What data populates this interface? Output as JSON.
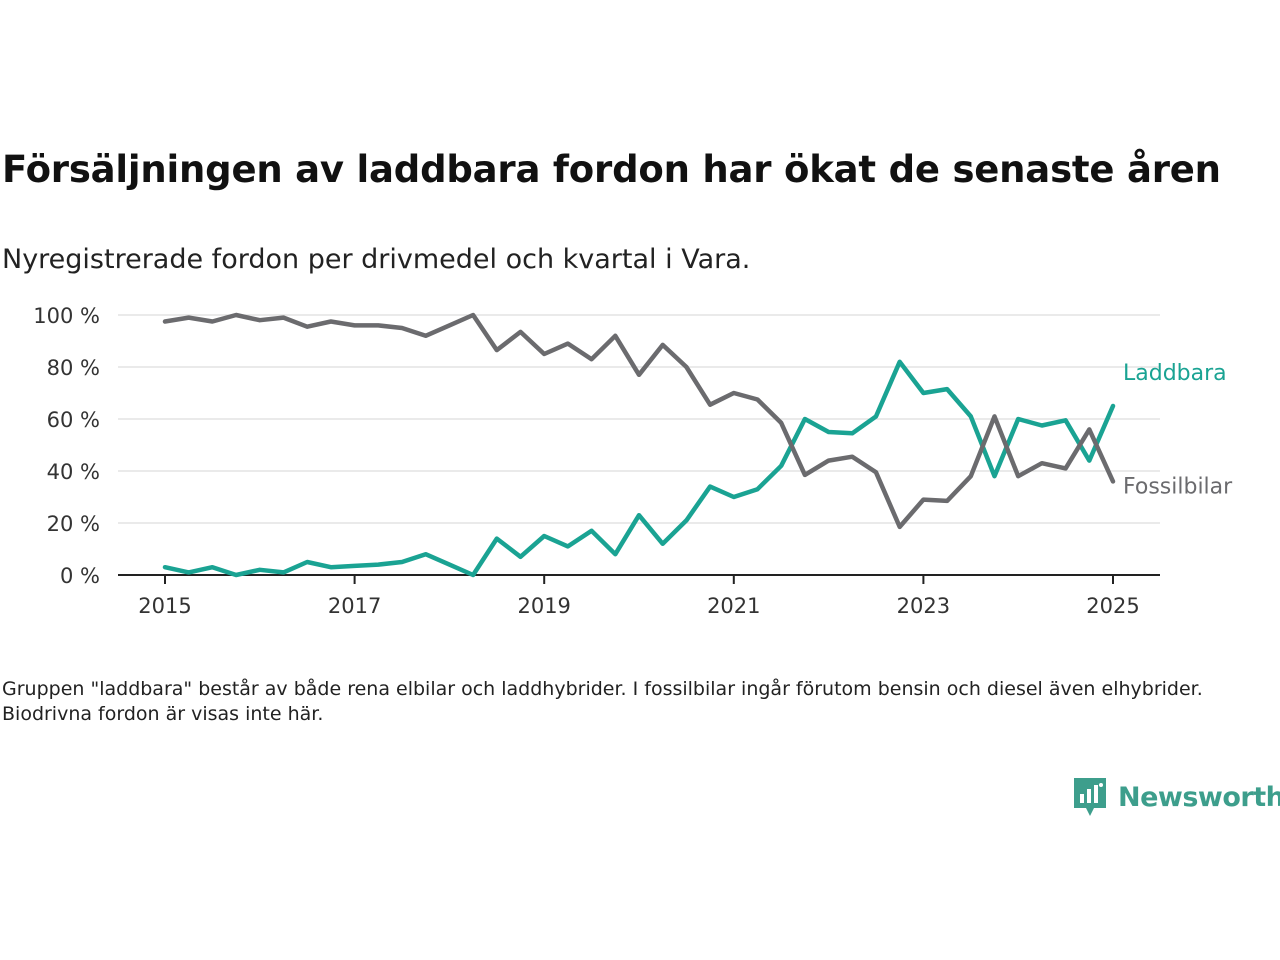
{
  "title": "Försäljningen av laddbara fordon har ökat de senaste åren",
  "subtitle": "Nyregistrerade fordon per drivmedel och kvartal i Vara.",
  "note": "Gruppen \"laddbara\" består av både rena elbilar och laddhybrider. I fossilbilar ingår förutom bensin och diesel även elhybrider. Biodrivna fordon är visas inte här.",
  "brand": {
    "name": "Newsworthy",
    "icon": "newsworthy-logo-icon",
    "color": "#3d9e8c"
  },
  "chart_data": {
    "type": "line",
    "x": [
      "2015-Q1",
      "2015-Q2",
      "2015-Q3",
      "2015-Q4",
      "2016-Q1",
      "2016-Q2",
      "2016-Q3",
      "2016-Q4",
      "2017-Q1",
      "2017-Q2",
      "2017-Q3",
      "2017-Q4",
      "2018-Q1",
      "2018-Q2",
      "2018-Q3",
      "2018-Q4",
      "2019-Q1",
      "2019-Q2",
      "2019-Q3",
      "2019-Q4",
      "2020-Q1",
      "2020-Q2",
      "2020-Q3",
      "2020-Q4",
      "2021-Q1",
      "2021-Q2",
      "2021-Q3",
      "2021-Q4",
      "2022-Q1",
      "2022-Q2",
      "2022-Q3",
      "2022-Q4",
      "2023-Q1",
      "2023-Q2",
      "2023-Q3",
      "2023-Q4",
      "2024-Q1",
      "2024-Q2",
      "2024-Q3",
      "2024-Q4",
      "2025-Q1"
    ],
    "series": [
      {
        "name": "Laddbara",
        "color": "#1aa393",
        "values": [
          3,
          1,
          3,
          0,
          2,
          1,
          5,
          3,
          3.5,
          4,
          5,
          8,
          4,
          0,
          14,
          7,
          15,
          11,
          17,
          8,
          23,
          12,
          21,
          34,
          30,
          33,
          42,
          60,
          55,
          54.5,
          61,
          82,
          70,
          71.5,
          61,
          38,
          60,
          57.5,
          59.5,
          44,
          65
        ]
      },
      {
        "name": "Fossilbilar",
        "color": "#6b6b6e",
        "values": [
          97.5,
          99,
          97.5,
          100,
          98,
          99,
          95.5,
          97.5,
          96,
          96,
          95,
          92,
          96,
          100,
          86.5,
          93.5,
          85,
          89,
          83,
          92,
          77,
          88.5,
          80,
          65.5,
          70,
          67.5,
          58.5,
          38.5,
          44,
          45.5,
          39.5,
          18.5,
          29,
          28.5,
          38,
          61,
          38,
          43,
          41,
          56,
          36
        ]
      }
    ],
    "x_ticks": [
      "2015",
      "2017",
      "2019",
      "2021",
      "2023",
      "2025"
    ],
    "y_ticks": [
      "0 %",
      "20 %",
      "40 %",
      "60 %",
      "80 %",
      "100 %"
    ],
    "ylim": [
      0,
      100
    ],
    "grid": true,
    "legend": "direct labels at line ends (right)",
    "axis_color": "#222222",
    "grid_color": "#dddddd"
  }
}
